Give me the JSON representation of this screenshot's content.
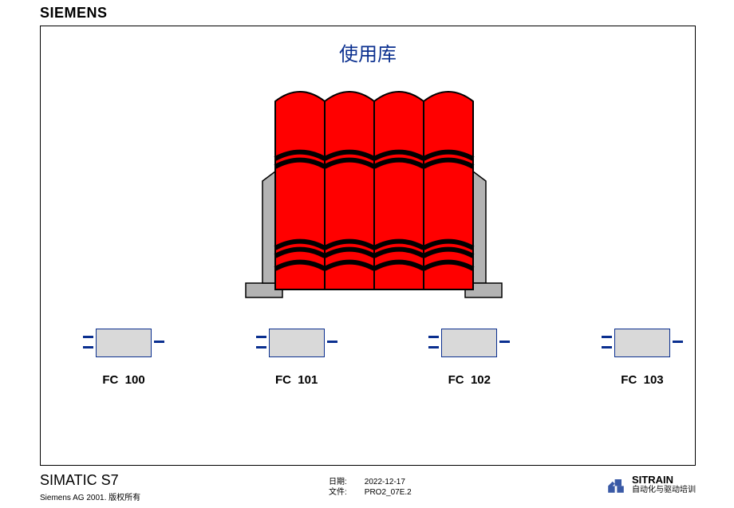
{
  "brand": "SIEMENS",
  "title": "使用库",
  "title_color": "#0a2f8f",
  "library": {
    "book_fill": "#ff0000",
    "book_stroke": "#000000",
    "holder_fill": "#b3b3b3",
    "holder_stroke": "#000000",
    "num_books": 4,
    "book_width": 62,
    "book_height": 236,
    "arc_rise": 12,
    "band_stroke_width": 6,
    "band_positions": [
      72,
      82,
      184,
      194,
      210
    ]
  },
  "fc_blocks": [
    {
      "label": "FC  100"
    },
    {
      "label": "FC  101"
    },
    {
      "label": "FC  102"
    },
    {
      "label": "FC  103"
    }
  ],
  "fc_style": {
    "box_fill": "#d9d9d9",
    "border_color": "#0a2f8f",
    "tick_color": "#0a2f8f"
  },
  "footer": {
    "product": "SIMATIC S7",
    "copyright": "Siemens AG 2001. 版权所有",
    "date_label": "日期:",
    "date_value": "2022-12-17",
    "file_label": "文件:",
    "file_value": "PRO2_07E.2",
    "sitrain_title": "SITRAIN",
    "sitrain_sub": "自动化与驱动培训",
    "logo_color": "#3a5aa6"
  }
}
